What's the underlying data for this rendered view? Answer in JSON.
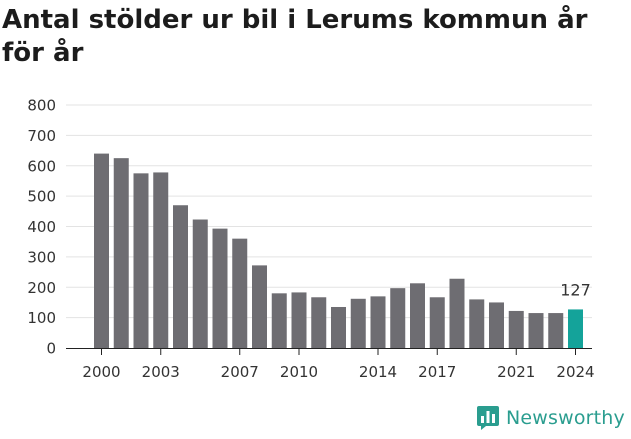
{
  "chart_data": {
    "type": "bar",
    "title": "Antal stölder ur bil i Lerums kommun år för år",
    "xlabel": "",
    "ylabel": "",
    "years": [
      2000,
      2001,
      2002,
      2003,
      2004,
      2005,
      2006,
      2007,
      2008,
      2009,
      2010,
      2011,
      2012,
      2013,
      2014,
      2015,
      2016,
      2017,
      2018,
      2019,
      2020,
      2021,
      2022,
      2023,
      2024
    ],
    "values": [
      640,
      625,
      575,
      578,
      470,
      423,
      393,
      360,
      272,
      180,
      183,
      167,
      135,
      162,
      170,
      197,
      213,
      167,
      228,
      160,
      150,
      122,
      115,
      115,
      127
    ],
    "x_ticks": [
      "2000",
      "2003",
      "2007",
      "2010",
      "2014",
      "2017",
      "2021",
      "2024"
    ],
    "y_ticks": [
      "0",
      "100",
      "200",
      "300",
      "400",
      "500",
      "600",
      "700",
      "800"
    ],
    "ylim": [
      0,
      800
    ],
    "highlight_label": "127",
    "colors": {
      "bar": "#6e6d72",
      "highlight": "#14a39a",
      "grid": "#e3e3e3",
      "axis": "#222222"
    }
  },
  "branding": {
    "name": "Newsworthy",
    "icon": "newsworthy-logo-icon"
  }
}
